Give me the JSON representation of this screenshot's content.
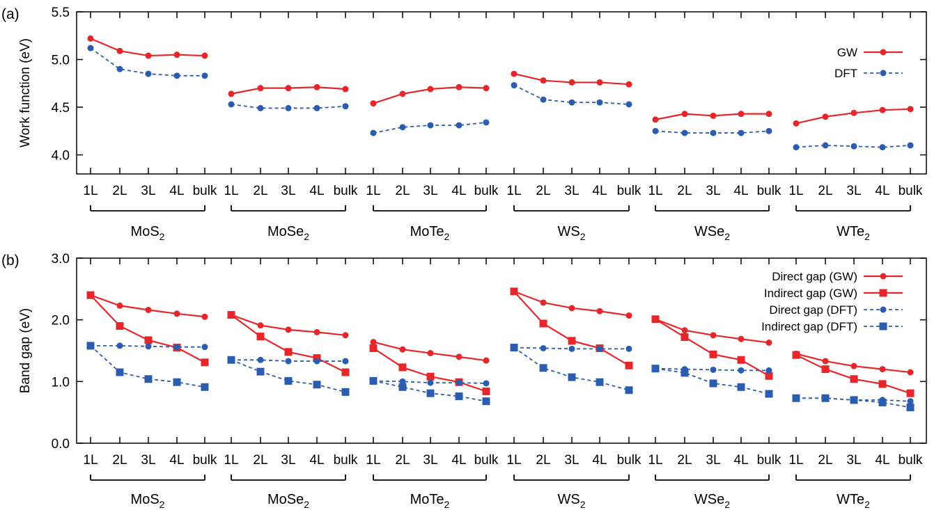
{
  "colors": {
    "gw": "#e8262a",
    "dft": "#2a5db0"
  },
  "chart_data": [
    {
      "type": "line",
      "panel_label": "(a)",
      "ylabel": "Work function (eV)",
      "ylim": [
        3.8,
        5.5
      ],
      "yticks": [
        "4.0",
        "4.5",
        "5.0",
        "5.5"
      ],
      "x_ticks": [
        "1L",
        "2L",
        "3L",
        "4L",
        "bulk"
      ],
      "groups": [
        {
          "base": "MoS",
          "sub": "2"
        },
        {
          "base": "MoSe",
          "sub": "2"
        },
        {
          "base": "MoTe",
          "sub": "2"
        },
        {
          "base": "WS",
          "sub": "2"
        },
        {
          "base": "WSe",
          "sub": "2"
        },
        {
          "base": "WTe",
          "sub": "2"
        }
      ],
      "legend_position": "top-right",
      "series": [
        {
          "name": "GW",
          "color": "#e8262a",
          "dash": false,
          "marker": "circle",
          "values": [
            [
              5.22,
              5.09,
              5.04,
              5.05,
              5.04
            ],
            [
              4.64,
              4.7,
              4.7,
              4.71,
              4.69
            ],
            [
              4.54,
              4.64,
              4.69,
              4.71,
              4.7
            ],
            [
              4.85,
              4.78,
              4.76,
              4.76,
              4.74
            ],
            [
              4.37,
              4.43,
              4.41,
              4.43,
              4.43
            ],
            [
              4.33,
              4.4,
              4.44,
              4.47,
              4.48
            ]
          ]
        },
        {
          "name": "DFT",
          "color": "#2a5db0",
          "dash": true,
          "marker": "circle",
          "values": [
            [
              5.12,
              4.9,
              4.85,
              4.83,
              4.83
            ],
            [
              4.53,
              4.49,
              4.49,
              4.49,
              4.51
            ],
            [
              4.23,
              4.29,
              4.31,
              4.31,
              4.34
            ],
            [
              4.73,
              4.58,
              4.55,
              4.55,
              4.53
            ],
            [
              4.25,
              4.23,
              4.23,
              4.23,
              4.25
            ],
            [
              4.08,
              4.1,
              4.09,
              4.08,
              4.1
            ]
          ]
        }
      ]
    },
    {
      "type": "line",
      "panel_label": "(b)",
      "ylabel": "Band gap (eV)",
      "ylim": [
        0.0,
        3.0
      ],
      "yticks": [
        "0.0",
        "1.0",
        "2.0",
        "3.0"
      ],
      "x_ticks": [
        "1L",
        "2L",
        "3L",
        "4L",
        "bulk"
      ],
      "groups": [
        {
          "base": "MoS",
          "sub": "2"
        },
        {
          "base": "MoSe",
          "sub": "2"
        },
        {
          "base": "MoTe",
          "sub": "2"
        },
        {
          "base": "WS",
          "sub": "2"
        },
        {
          "base": "WSe",
          "sub": "2"
        },
        {
          "base": "WTe",
          "sub": "2"
        }
      ],
      "legend_position": "top-right",
      "series": [
        {
          "name": "Direct gap (GW)",
          "color": "#e8262a",
          "dash": false,
          "marker": "circle",
          "values": [
            [
              2.4,
              2.23,
              2.16,
              2.1,
              2.05
            ],
            [
              2.08,
              1.91,
              1.84,
              1.8,
              1.75
            ],
            [
              1.64,
              1.52,
              1.46,
              1.4,
              1.34
            ],
            [
              2.46,
              2.28,
              2.19,
              2.14,
              2.07
            ],
            [
              2.01,
              1.83,
              1.75,
              1.69,
              1.63
            ],
            [
              1.45,
              1.33,
              1.25,
              1.2,
              1.15
            ]
          ]
        },
        {
          "name": "Indirect gap (GW)",
          "color": "#e8262a",
          "dash": false,
          "marker": "square",
          "values": [
            [
              2.4,
              1.9,
              1.67,
              1.55,
              1.31
            ],
            [
              2.08,
              1.73,
              1.48,
              1.38,
              1.15
            ],
            [
              1.54,
              1.23,
              1.08,
              0.99,
              0.84
            ],
            [
              2.46,
              1.94,
              1.66,
              1.54,
              1.26
            ],
            [
              2.01,
              1.72,
              1.44,
              1.35,
              1.09
            ],
            [
              1.43,
              1.2,
              1.04,
              0.96,
              0.81
            ]
          ]
        },
        {
          "name": "Direct gap (DFT)",
          "color": "#2a5db0",
          "dash": true,
          "marker": "circle",
          "values": [
            [
              1.58,
              1.58,
              1.57,
              1.56,
              1.56
            ],
            [
              1.35,
              1.35,
              1.33,
              1.33,
              1.33
            ],
            [
              1.01,
              1.0,
              0.98,
              0.98,
              0.97
            ],
            [
              1.55,
              1.54,
              1.53,
              1.53,
              1.53
            ],
            [
              1.21,
              1.2,
              1.19,
              1.18,
              1.18
            ],
            [
              0.73,
              0.73,
              0.7,
              0.7,
              0.68
            ]
          ]
        },
        {
          "name": "Indirect gap (DFT)",
          "color": "#2a5db0",
          "dash": true,
          "marker": "square",
          "values": [
            [
              1.58,
              1.15,
              1.04,
              0.99,
              0.91
            ],
            [
              1.35,
              1.16,
              1.01,
              0.95,
              0.83
            ],
            [
              1.01,
              0.91,
              0.81,
              0.76,
              0.68
            ],
            [
              1.55,
              1.22,
              1.07,
              0.99,
              0.86
            ],
            [
              1.21,
              1.14,
              0.97,
              0.91,
              0.8
            ],
            [
              0.73,
              0.73,
              0.7,
              0.66,
              0.58
            ]
          ]
        }
      ]
    }
  ]
}
